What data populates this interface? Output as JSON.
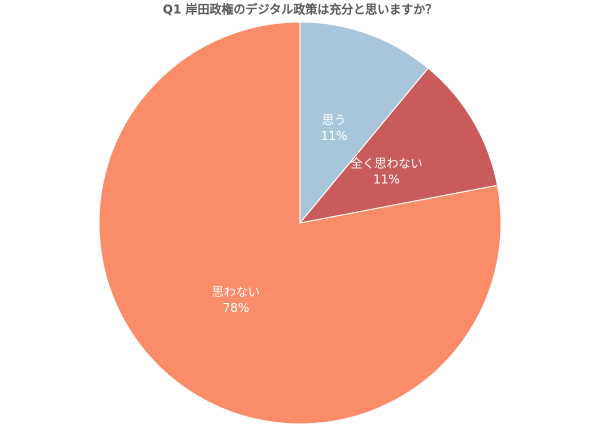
{
  "chart_data": {
    "type": "pie",
    "title": "Q1 岸田政権のデジタル政策は充分と思いますか？",
    "categories": [
      "思う",
      "全く思わない",
      "思わない"
    ],
    "values": [
      11,
      11,
      78
    ],
    "value_labels": [
      "11%",
      "11%",
      "78%"
    ],
    "colors": [
      "#a8c5da",
      "#c95b5b",
      "#fb8c69"
    ]
  }
}
